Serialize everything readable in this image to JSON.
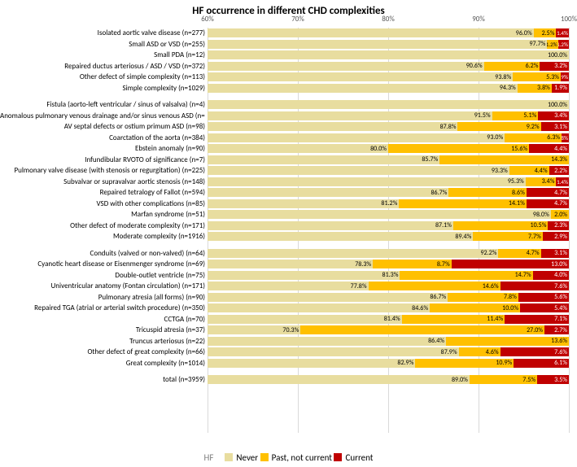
{
  "title": "HF occurrence in different CHD complexities",
  "title_fontsize": 13,
  "x_axis": {
    "min": 60,
    "max": 100,
    "ticks": [
      60,
      70,
      80,
      90,
      100
    ],
    "tick_labels": [
      "60%",
      "70%",
      "80%",
      "90%",
      "100%"
    ],
    "label_fontsize": 9,
    "grid_color": "#d9d9d9"
  },
  "colors": {
    "never": "#e8dd9f",
    "past": "#ffc000",
    "current": "#c00000",
    "text_on_light": "#000000",
    "text_on_dark": "#ffffff",
    "background": "#ffffff"
  },
  "legend": {
    "title": "HF",
    "items": [
      {
        "key": "never",
        "label": "Never"
      },
      {
        "key": "past",
        "label": "Past, not current"
      },
      {
        "key": "current",
        "label": "Current"
      }
    ],
    "fontsize": 11
  },
  "row_height": 13.5,
  "group_gap": 7,
  "label_fontsize": 9,
  "value_fontsize": 8,
  "groups": [
    {
      "rows": [
        {
          "label": "Isolated aortic valve disease (n=277)",
          "never": 96.0,
          "past": 2.5,
          "current": 1.4
        },
        {
          "label": "Small ASD or VSD (n=255)",
          "never": 97.7,
          "past": 1.2,
          "current": 1.2
        },
        {
          "label": "Small PDA (n=12)",
          "never": 100.0,
          "past": null,
          "current": null
        },
        {
          "label": "Repaired ductus arteriosus / ASD / VSD (n=372)",
          "never": 90.6,
          "past": 6.2,
          "current": 3.2
        },
        {
          "label": "Other defect of simple complexity (n=113)",
          "never": 93.8,
          "past": 5.3,
          "current": 0.9
        },
        {
          "label": "Simple complexity (n=1029)",
          "never": 94.3,
          "past": 3.8,
          "current": 1.9
        }
      ]
    },
    {
      "rows": [
        {
          "label": "Fistula (aorto-left ventricular / sinus of valsalva) (n=4)",
          "never": 100.0,
          "past": null,
          "current": null
        },
        {
          "label": "Anomalous pulmonary venous drainage and/or sinus venous ASD (n=59)",
          "never": 91.5,
          "past": 5.1,
          "current": 3.4
        },
        {
          "label": "AV septal defects or ostium primum ASD (n=98)",
          "never": 87.8,
          "past": 9.2,
          "current": 3.1
        },
        {
          "label": "Coarctation of the aorta (n=384)",
          "never": 93.0,
          "past": 6.3,
          "current": 0.8
        },
        {
          "label": "Ebstein anomaly (n=90)",
          "never": 80.0,
          "past": 15.6,
          "current": 4.4
        },
        {
          "label": "Infundibular RVOTO of significance (n=7)",
          "never": 85.7,
          "past": 14.3,
          "current": null
        },
        {
          "label": "Pulmonary valve disease (with stenosis or regurgitation) (n=225)",
          "never": 93.3,
          "past": 4.4,
          "current": 2.2
        },
        {
          "label": "Subvalvar or supravalvar aortic stenosis (n=148)",
          "never": 95.3,
          "past": 3.4,
          "current": 1.4
        },
        {
          "label": "Repaired tetralogy of Fallot (n=594)",
          "never": 86.7,
          "past": 8.6,
          "current": 4.7
        },
        {
          "label": "VSD with other complications (n=85)",
          "never": 81.2,
          "past": 14.1,
          "current": 4.7
        },
        {
          "label": "Marfan syndrome (n=51)",
          "never": 98.0,
          "past": 2.0,
          "current": null
        },
        {
          "label": "Other defect of moderate complexity (n=171)",
          "never": 87.1,
          "past": 10.5,
          "current": 2.3
        },
        {
          "label": "Moderate complexity (n=1916)",
          "never": 89.4,
          "past": 7.7,
          "current": 2.9
        }
      ]
    },
    {
      "rows": [
        {
          "label": "Conduits (valved or non-valved) (n=64)",
          "never": 92.2,
          "past": 4.7,
          "current": 3.1
        },
        {
          "label": "Cyanotic heart disease or Eisenmenger syndrome (n=69)",
          "never": 78.3,
          "past": 8.7,
          "current": 13.0
        },
        {
          "label": "Double-outlet ventricle (n=75)",
          "never": 81.3,
          "past": 14.7,
          "current": 4.0
        },
        {
          "label": "Univentricular anatomy (Fontan circulation) (n=171)",
          "never": 77.8,
          "past": 14.6,
          "current": 7.6
        },
        {
          "label": "Pulmonary atresia (all forms) (n=90)",
          "never": 86.7,
          "past": 7.8,
          "current": 5.6
        },
        {
          "label": "Repaired TGA (atrial or arterial switch procedure) (n=350)",
          "never": 84.6,
          "past": 10.0,
          "current": 5.4
        },
        {
          "label": "CCTGA (n=70)",
          "never": 81.4,
          "past": 11.4,
          "current": 7.1
        },
        {
          "label": "Tricuspid atresia (n=37)",
          "never": 70.3,
          "past": 27.0,
          "current": 2.7
        },
        {
          "label": "Truncus arteriosus (n=22)",
          "never": 86.4,
          "past": 13.6,
          "current": null
        },
        {
          "label": "Other defect of great complexity (n=66)",
          "never": 87.9,
          "past": 4.6,
          "current": 7.6
        },
        {
          "label": "Great complexity (n=1014)",
          "never": 82.9,
          "past": 10.9,
          "current": 6.1
        }
      ]
    },
    {
      "rows": [
        {
          "label": "total (n=3959)",
          "never": 89.0,
          "past": 7.5,
          "current": 3.5
        }
      ]
    }
  ]
}
